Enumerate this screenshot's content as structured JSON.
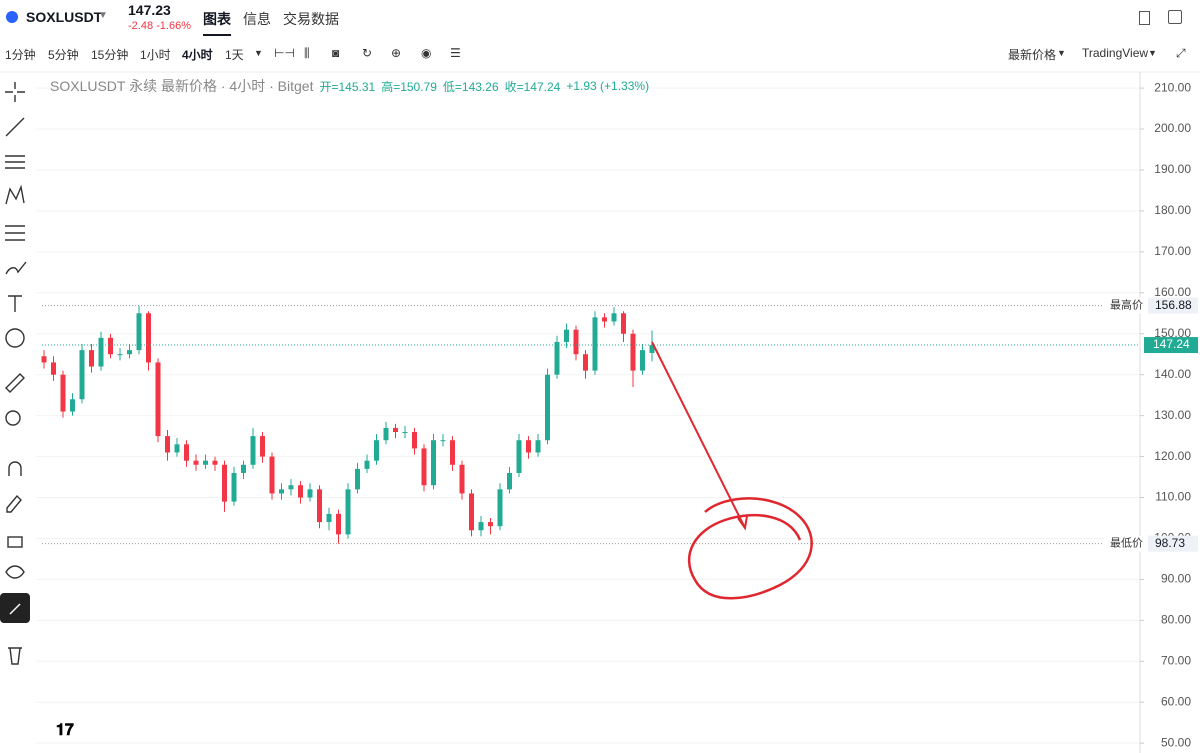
{
  "header": {
    "symbol": "SOXLUSDT",
    "price": "147.23",
    "change": "-2.48 -1.66%",
    "tabs": [
      "图表",
      "信息",
      "交易数据"
    ]
  },
  "toolbar": {
    "intervals": [
      "1分钟",
      "5分钟",
      "15分钟",
      "1小时",
      "4小时",
      "1天"
    ],
    "price_source": "最新价格",
    "provider": "TradingView"
  },
  "chart_data": {
    "type": "candlestick",
    "legend": {
      "title": "SOXLUSDT 永续 最新价格 · 4小时 · Bitget",
      "open": "开=145.31",
      "high": "高=150.79",
      "low": "低=143.26",
      "close": "收=147.24",
      "change": "+1.93 (+1.33%)"
    },
    "up_color": "#22ab94",
    "down_color": "#f23645",
    "open": [
      144.5,
      143,
      140,
      131,
      134,
      146,
      142,
      149,
      145,
      145,
      146,
      155,
      143,
      125,
      121,
      123,
      119,
      118,
      119,
      118,
      109,
      116,
      118,
      125,
      120,
      111,
      112,
      113,
      110,
      112,
      104,
      106,
      101,
      112,
      117,
      119,
      124,
      127,
      126,
      126,
      122,
      113,
      124,
      124,
      118,
      111,
      102,
      104,
      103,
      112,
      116,
      124,
      121,
      124,
      140,
      148,
      151,
      145,
      141,
      154,
      153,
      155,
      150,
      141,
      145.31
    ],
    "high": [
      146,
      144.5,
      141,
      135.5,
      147.5,
      147.5,
      150.5,
      150,
      146.5,
      147.5,
      156.88,
      155.5,
      144,
      126.5,
      124.5,
      124,
      120.5,
      120.5,
      120,
      119,
      117.5,
      119,
      127,
      126,
      121,
      113.5,
      114.5,
      114,
      113.5,
      113,
      107.5,
      107,
      113.5,
      118.5,
      120.5,
      125.5,
      128.5,
      128,
      127.5,
      127,
      123,
      125.5,
      125.5,
      125,
      119,
      112,
      105.5,
      105,
      113.5,
      117.5,
      125.5,
      125,
      125.5,
      141.5,
      149.5,
      152.5,
      152,
      146,
      155.5,
      155,
      156.5,
      155.5,
      151,
      147.5,
      150.79
    ],
    "low": [
      141.5,
      138.5,
      129.5,
      130,
      133,
      140.5,
      141,
      144,
      143.5,
      144,
      145,
      141,
      123.5,
      119,
      120,
      117.5,
      116.5,
      117,
      116.5,
      106.5,
      108,
      114.5,
      117,
      118.5,
      109.5,
      109.5,
      110.5,
      108.5,
      109,
      102.5,
      102,
      98.73,
      100,
      111,
      116,
      118,
      123,
      124.5,
      124.5,
      120.5,
      111.5,
      112,
      122.5,
      116.5,
      109.5,
      100.5,
      100.5,
      101,
      102,
      111,
      115,
      119.5,
      120,
      123,
      139,
      146.5,
      143.5,
      139,
      140,
      151.5,
      152,
      148,
      137,
      140,
      143.26
    ],
    "close": [
      143,
      140,
      131,
      134,
      146,
      142,
      149,
      145,
      145,
      146,
      155,
      143,
      125,
      121,
      123,
      119,
      118,
      119,
      118,
      109,
      116,
      118,
      125,
      120,
      111,
      112,
      113,
      110,
      112,
      104,
      106,
      101,
      112,
      117,
      119,
      124,
      127,
      126,
      126,
      122,
      113,
      124,
      124,
      118,
      111,
      102,
      104,
      103,
      112,
      116,
      124,
      121,
      124,
      140,
      148,
      151,
      145,
      141,
      154,
      153,
      155,
      150,
      141,
      146,
      147.24
    ],
    "ylim": [
      47.6,
      213.2
    ],
    "yticks": [
      {
        "value": 50,
        "label": "50.00"
      },
      {
        "value": 60,
        "label": "60.00"
      },
      {
        "value": 70,
        "label": "70.00"
      },
      {
        "value": 80,
        "label": "80.00"
      },
      {
        "value": 90,
        "label": "90.00"
      },
      {
        "value": 100,
        "label": "100.00"
      },
      {
        "value": 110,
        "label": "110.00"
      },
      {
        "value": 120,
        "label": "120.00"
      },
      {
        "value": 130,
        "label": "130.00"
      },
      {
        "value": 140,
        "label": "140.00"
      },
      {
        "value": 150,
        "label": "150.00"
      },
      {
        "value": 160,
        "label": "160.00"
      },
      {
        "value": 170,
        "label": "170.00"
      },
      {
        "value": 180,
        "label": "180.00"
      },
      {
        "value": 190,
        "label": "190.00"
      },
      {
        "value": 200,
        "label": "200.00"
      },
      {
        "value": 210,
        "label": "210.00"
      }
    ],
    "grid": true,
    "price_lines": [
      {
        "label": "最高价",
        "value": 156.88
      },
      {
        "label": "最低价",
        "value": 98.73
      }
    ],
    "last_price": 147.24
  }
}
